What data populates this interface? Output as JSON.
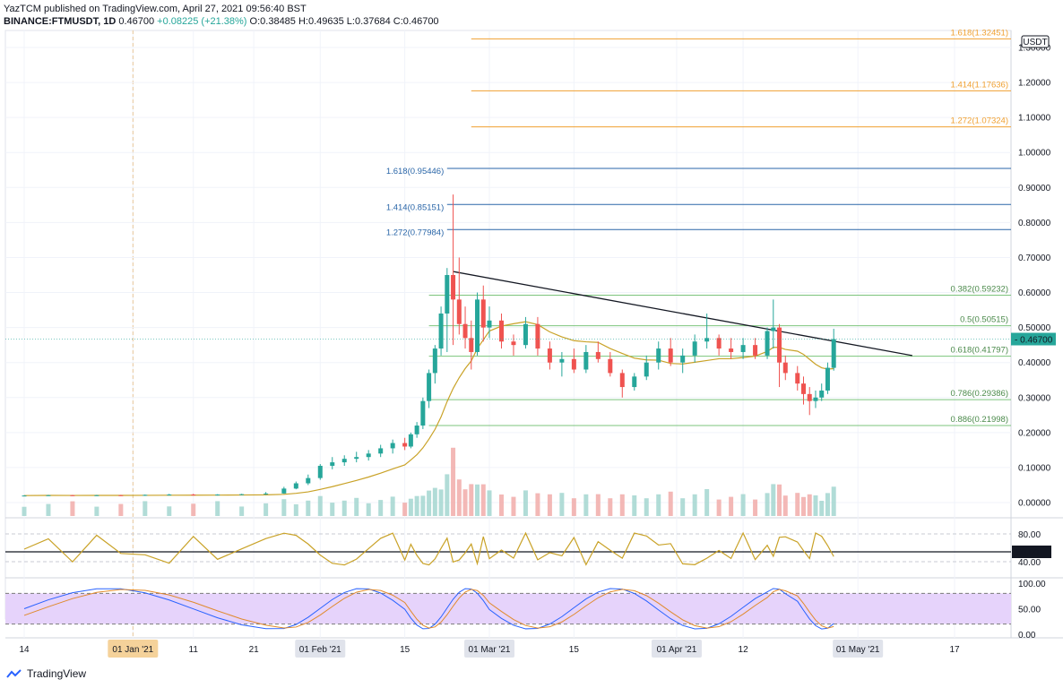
{
  "header": {
    "line1": "YazTCM published on TradingView.com, April 27, 2021 09:56:40 BST",
    "symbol": "BINANCE:FTMUSDT, 1D",
    "last": "0.46700",
    "change": "+0.08225 (+21.38%)",
    "ohlc": "O:0.38485  H:0.49635  L:0.37684  C:0.46700"
  },
  "footer": {
    "brand": "TradingView"
  },
  "colors": {
    "up": "#26a69a",
    "down": "#ef5350",
    "ma": "#c9a227",
    "osc": "#c9a227",
    "rsi_fill": "#e6d3fb",
    "blue_fib": "#2a66a8",
    "orange_fib": "#f0a030",
    "green_fib": "#7cc47c"
  },
  "chart_data": {
    "type": "candlestick",
    "currency": "USDT",
    "price_axis_labels": [
      "1.30000",
      "1.20000",
      "1.10000",
      "1.00000",
      "0.90000",
      "0.80000",
      "0.70000",
      "0.60000",
      "0.50000",
      "0.40000",
      "0.30000",
      "0.20000",
      "0.10000",
      "0.00000"
    ],
    "price_axis_values": [
      1.3,
      1.2,
      1.1,
      1.0,
      0.9,
      0.8,
      0.7,
      0.6,
      0.5,
      0.4,
      0.3,
      0.2,
      0.1,
      0.0
    ],
    "last_price_label": "0.46700",
    "x_axis_labels": [
      "14",
      "01 Jan '21",
      "11",
      "21",
      "01 Feb '21",
      "15",
      "01 Mar '21",
      "15",
      "01 Apr '21",
      "12",
      "01 May '21",
      "17"
    ],
    "x_axis_highlighted": [
      "01 Jan '21",
      "01 Feb '21",
      "01 Mar '21",
      "01 Apr '21",
      "01 May '21"
    ],
    "fib_levels": [
      {
        "label": "1.618(1.32451)",
        "value": 1.32451,
        "color": "orange",
        "x_from": "2021-02-26"
      },
      {
        "label": "1.414(1.17636)",
        "value": 1.17636,
        "color": "orange",
        "x_from": "2021-02-26"
      },
      {
        "label": "1.272(1.07324)",
        "value": 1.07324,
        "color": "orange",
        "x_from": "2021-02-26"
      },
      {
        "label": "1.618(0.95446)",
        "value": 0.95446,
        "color": "blue",
        "x_from": "2021-02-22"
      },
      {
        "label": "1.414(0.85151)",
        "value": 0.85151,
        "color": "blue",
        "x_from": "2021-02-22"
      },
      {
        "label": "1.272(0.77984)",
        "value": 0.77984,
        "color": "blue",
        "x_from": "2021-02-22"
      },
      {
        "label": "0.382(0.59232)",
        "value": 0.59232,
        "color": "green",
        "x_from": "2021-02-19"
      },
      {
        "label": "0.5(0.50515)",
        "value": 0.50515,
        "color": "green",
        "x_from": "2021-02-19"
      },
      {
        "label": "0.618(0.41797)",
        "value": 0.41797,
        "color": "green",
        "x_from": "2021-02-19"
      },
      {
        "label": "0.786(0.29386)",
        "value": 0.29386,
        "color": "green",
        "x_from": "2021-02-19"
      },
      {
        "label": "0.886(0.21998)",
        "value": 0.21998,
        "color": "green",
        "x_from": "2021-02-19"
      }
    ],
    "trendline": {
      "from": {
        "date": "2021-02-23",
        "price": 0.66
      },
      "to": {
        "date": "2021-05-10",
        "price": 0.42
      }
    },
    "ma_description": "moving average, yellow",
    "ohlc": [
      {
        "d": "2020-12-14",
        "o": 0.02,
        "h": 0.021,
        "l": 0.019,
        "c": 0.02
      },
      {
        "d": "2020-12-18",
        "o": 0.02,
        "h": 0.022,
        "l": 0.019,
        "c": 0.021
      },
      {
        "d": "2020-12-22",
        "o": 0.021,
        "h": 0.022,
        "l": 0.019,
        "c": 0.02
      },
      {
        "d": "2020-12-26",
        "o": 0.02,
        "h": 0.022,
        "l": 0.019,
        "c": 0.021
      },
      {
        "d": "2020-12-30",
        "o": 0.021,
        "h": 0.022,
        "l": 0.019,
        "c": 0.02
      },
      {
        "d": "2021-01-03",
        "o": 0.02,
        "h": 0.023,
        "l": 0.019,
        "c": 0.022
      },
      {
        "d": "2021-01-07",
        "o": 0.022,
        "h": 0.025,
        "l": 0.02,
        "c": 0.023
      },
      {
        "d": "2021-01-11",
        "o": 0.023,
        "h": 0.025,
        "l": 0.02,
        "c": 0.022
      },
      {
        "d": "2021-01-15",
        "o": 0.022,
        "h": 0.024,
        "l": 0.02,
        "c": 0.023
      },
      {
        "d": "2021-01-19",
        "o": 0.023,
        "h": 0.025,
        "l": 0.021,
        "c": 0.024
      },
      {
        "d": "2021-01-23",
        "o": 0.024,
        "h": 0.03,
        "l": 0.022,
        "c": 0.026
      },
      {
        "d": "2021-01-26",
        "o": 0.026,
        "h": 0.045,
        "l": 0.025,
        "c": 0.04
      },
      {
        "d": "2021-01-28",
        "o": 0.04,
        "h": 0.06,
        "l": 0.038,
        "c": 0.055
      },
      {
        "d": "2021-01-30",
        "o": 0.055,
        "h": 0.08,
        "l": 0.05,
        "c": 0.07
      },
      {
        "d": "2021-02-01",
        "o": 0.07,
        "h": 0.11,
        "l": 0.065,
        "c": 0.105
      },
      {
        "d": "2021-02-03",
        "o": 0.105,
        "h": 0.13,
        "l": 0.095,
        "c": 0.115
      },
      {
        "d": "2021-02-05",
        "o": 0.115,
        "h": 0.135,
        "l": 0.105,
        "c": 0.125
      },
      {
        "d": "2021-02-07",
        "o": 0.125,
        "h": 0.145,
        "l": 0.115,
        "c": 0.13
      },
      {
        "d": "2021-02-09",
        "o": 0.13,
        "h": 0.15,
        "l": 0.12,
        "c": 0.14
      },
      {
        "d": "2021-02-11",
        "o": 0.14,
        "h": 0.165,
        "l": 0.13,
        "c": 0.155
      },
      {
        "d": "2021-02-13",
        "o": 0.155,
        "h": 0.18,
        "l": 0.14,
        "c": 0.17
      },
      {
        "d": "2021-02-15",
        "o": 0.17,
        "h": 0.185,
        "l": 0.15,
        "c": 0.16
      },
      {
        "d": "2021-02-16",
        "o": 0.16,
        "h": 0.2,
        "l": 0.155,
        "c": 0.195
      },
      {
        "d": "2021-02-17",
        "o": 0.195,
        "h": 0.23,
        "l": 0.185,
        "c": 0.22
      },
      {
        "d": "2021-02-18",
        "o": 0.22,
        "h": 0.3,
        "l": 0.21,
        "c": 0.29
      },
      {
        "d": "2021-02-19",
        "o": 0.29,
        "h": 0.38,
        "l": 0.27,
        "c": 0.37
      },
      {
        "d": "2021-02-20",
        "o": 0.37,
        "h": 0.45,
        "l": 0.34,
        "c": 0.44
      },
      {
        "d": "2021-02-21",
        "o": 0.44,
        "h": 0.56,
        "l": 0.42,
        "c": 0.54
      },
      {
        "d": "2021-02-22",
        "o": 0.54,
        "h": 0.67,
        "l": 0.43,
        "c": 0.65
      },
      {
        "d": "2021-02-23",
        "o": 0.65,
        "h": 0.88,
        "l": 0.45,
        "c": 0.58
      },
      {
        "d": "2021-02-24",
        "o": 0.58,
        "h": 0.7,
        "l": 0.48,
        "c": 0.51
      },
      {
        "d": "2021-02-25",
        "o": 0.51,
        "h": 0.56,
        "l": 0.44,
        "c": 0.47
      },
      {
        "d": "2021-02-26",
        "o": 0.47,
        "h": 0.52,
        "l": 0.38,
        "c": 0.43
      },
      {
        "d": "2021-02-27",
        "o": 0.43,
        "h": 0.6,
        "l": 0.42,
        "c": 0.58
      },
      {
        "d": "2021-02-28",
        "o": 0.58,
        "h": 0.62,
        "l": 0.46,
        "c": 0.5
      },
      {
        "d": "2021-03-01",
        "o": 0.5,
        "h": 0.56,
        "l": 0.47,
        "c": 0.52
      },
      {
        "d": "2021-03-03",
        "o": 0.52,
        "h": 0.54,
        "l": 0.44,
        "c": 0.46
      },
      {
        "d": "2021-03-05",
        "o": 0.46,
        "h": 0.48,
        "l": 0.42,
        "c": 0.45
      },
      {
        "d": "2021-03-07",
        "o": 0.45,
        "h": 0.53,
        "l": 0.44,
        "c": 0.51
      },
      {
        "d": "2021-03-09",
        "o": 0.51,
        "h": 0.53,
        "l": 0.42,
        "c": 0.44
      },
      {
        "d": "2021-03-11",
        "o": 0.44,
        "h": 0.46,
        "l": 0.38,
        "c": 0.4
      },
      {
        "d": "2021-03-13",
        "o": 0.4,
        "h": 0.43,
        "l": 0.36,
        "c": 0.41
      },
      {
        "d": "2021-03-15",
        "o": 0.41,
        "h": 0.44,
        "l": 0.37,
        "c": 0.38
      },
      {
        "d": "2021-03-17",
        "o": 0.38,
        "h": 0.45,
        "l": 0.37,
        "c": 0.43
      },
      {
        "d": "2021-03-19",
        "o": 0.43,
        "h": 0.46,
        "l": 0.4,
        "c": 0.41
      },
      {
        "d": "2021-03-21",
        "o": 0.41,
        "h": 0.43,
        "l": 0.36,
        "c": 0.37
      },
      {
        "d": "2021-03-23",
        "o": 0.37,
        "h": 0.38,
        "l": 0.3,
        "c": 0.33
      },
      {
        "d": "2021-03-25",
        "o": 0.33,
        "h": 0.37,
        "l": 0.32,
        "c": 0.36
      },
      {
        "d": "2021-03-27",
        "o": 0.36,
        "h": 0.42,
        "l": 0.35,
        "c": 0.4
      },
      {
        "d": "2021-03-29",
        "o": 0.4,
        "h": 0.46,
        "l": 0.38,
        "c": 0.44
      },
      {
        "d": "2021-03-31",
        "o": 0.44,
        "h": 0.47,
        "l": 0.39,
        "c": 0.4
      },
      {
        "d": "2021-04-02",
        "o": 0.4,
        "h": 0.44,
        "l": 0.37,
        "c": 0.42
      },
      {
        "d": "2021-04-04",
        "o": 0.42,
        "h": 0.48,
        "l": 0.4,
        "c": 0.46
      },
      {
        "d": "2021-04-06",
        "o": 0.46,
        "h": 0.54,
        "l": 0.44,
        "c": 0.47
      },
      {
        "d": "2021-04-08",
        "o": 0.47,
        "h": 0.48,
        "l": 0.42,
        "c": 0.44
      },
      {
        "d": "2021-04-10",
        "o": 0.44,
        "h": 0.47,
        "l": 0.41,
        "c": 0.43
      },
      {
        "d": "2021-04-12",
        "o": 0.43,
        "h": 0.47,
        "l": 0.41,
        "c": 0.45
      },
      {
        "d": "2021-04-14",
        "o": 0.45,
        "h": 0.47,
        "l": 0.41,
        "c": 0.42
      },
      {
        "d": "2021-04-16",
        "o": 0.42,
        "h": 0.5,
        "l": 0.41,
        "c": 0.49
      },
      {
        "d": "2021-04-17",
        "o": 0.49,
        "h": 0.58,
        "l": 0.44,
        "c": 0.5
      },
      {
        "d": "2021-04-18",
        "o": 0.5,
        "h": 0.51,
        "l": 0.33,
        "c": 0.4
      },
      {
        "d": "2021-04-19",
        "o": 0.4,
        "h": 0.42,
        "l": 0.35,
        "c": 0.37
      },
      {
        "d": "2021-04-21",
        "o": 0.37,
        "h": 0.39,
        "l": 0.32,
        "c": 0.34
      },
      {
        "d": "2021-04-22",
        "o": 0.34,
        "h": 0.36,
        "l": 0.28,
        "c": 0.31
      },
      {
        "d": "2021-04-23",
        "o": 0.31,
        "h": 0.33,
        "l": 0.25,
        "c": 0.29
      },
      {
        "d": "2021-04-24",
        "o": 0.29,
        "h": 0.32,
        "l": 0.27,
        "c": 0.3
      },
      {
        "d": "2021-04-25",
        "o": 0.3,
        "h": 0.34,
        "l": 0.29,
        "c": 0.32
      },
      {
        "d": "2021-04-26",
        "o": 0.32,
        "h": 0.4,
        "l": 0.31,
        "c": 0.385
      },
      {
        "d": "2021-04-27",
        "o": 0.38485,
        "h": 0.49635,
        "l": 0.37684,
        "c": 0.467
      }
    ],
    "osc_panel": {
      "ticks": [
        "80.00",
        "50.00",
        "40.00"
      ],
      "current_label": "50.00"
    },
    "rsi_panel": {
      "ticks": [
        "100.00",
        "50.00",
        "0.00"
      ],
      "band": [
        20,
        80
      ]
    }
  }
}
